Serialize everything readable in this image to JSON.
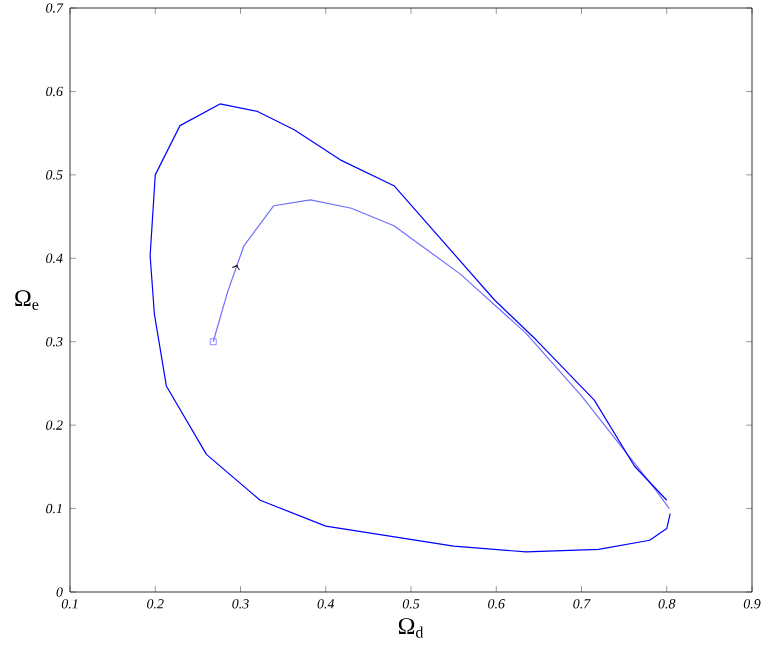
{
  "chart_data": {
    "type": "line",
    "xlabel": "Ω$_{d}$",
    "ylabel": "Ω$_{e}$",
    "xlim": [
      0.1,
      0.9
    ],
    "ylim": [
      0,
      0.7
    ],
    "xticks": [
      0.1,
      0.2,
      0.3,
      0.4,
      0.5,
      0.6,
      0.7,
      0.8,
      0.9
    ],
    "yticks": [
      0,
      0.1,
      0.2,
      0.3,
      0.4,
      0.5,
      0.6,
      0.7
    ],
    "line_style": "solid",
    "marker": "none",
    "series": [
      {
        "color": "#7070ff",
        "x": [
          0.268,
          0.285,
          0.304,
          0.339,
          0.382,
          0.43,
          0.48,
          0.558,
          0.635,
          0.7,
          0.75,
          0.785,
          0.803
        ],
        "values": [
          0.3,
          0.36,
          0.415,
          0.463,
          0.47,
          0.46,
          0.439,
          0.381,
          0.31,
          0.235,
          0.17,
          0.125,
          0.1
        ]
      },
      {
        "color": "#0000ff",
        "x": [
          0.804,
          0.8,
          0.78,
          0.72,
          0.635,
          0.55,
          0.4,
          0.323,
          0.26,
          0.213,
          0.199,
          0.194,
          0.2,
          0.229,
          0.276,
          0.32,
          0.363,
          0.417,
          0.48,
          0.598,
          0.647,
          0.715,
          0.762,
          0.8
        ],
        "values": [
          0.094,
          0.076,
          0.062,
          0.051,
          0.048,
          0.055,
          0.079,
          0.11,
          0.165,
          0.247,
          0.333,
          0.403,
          0.5,
          0.559,
          0.585,
          0.576,
          0.554,
          0.518,
          0.487,
          0.35,
          0.302,
          0.23,
          0.151,
          0.11
        ]
      },
      {
        "type": "scatter",
        "color": "#7070ff",
        "marker": "square",
        "x": [
          0.268
        ],
        "values": [
          0.3
        ]
      }
    ]
  }
}
